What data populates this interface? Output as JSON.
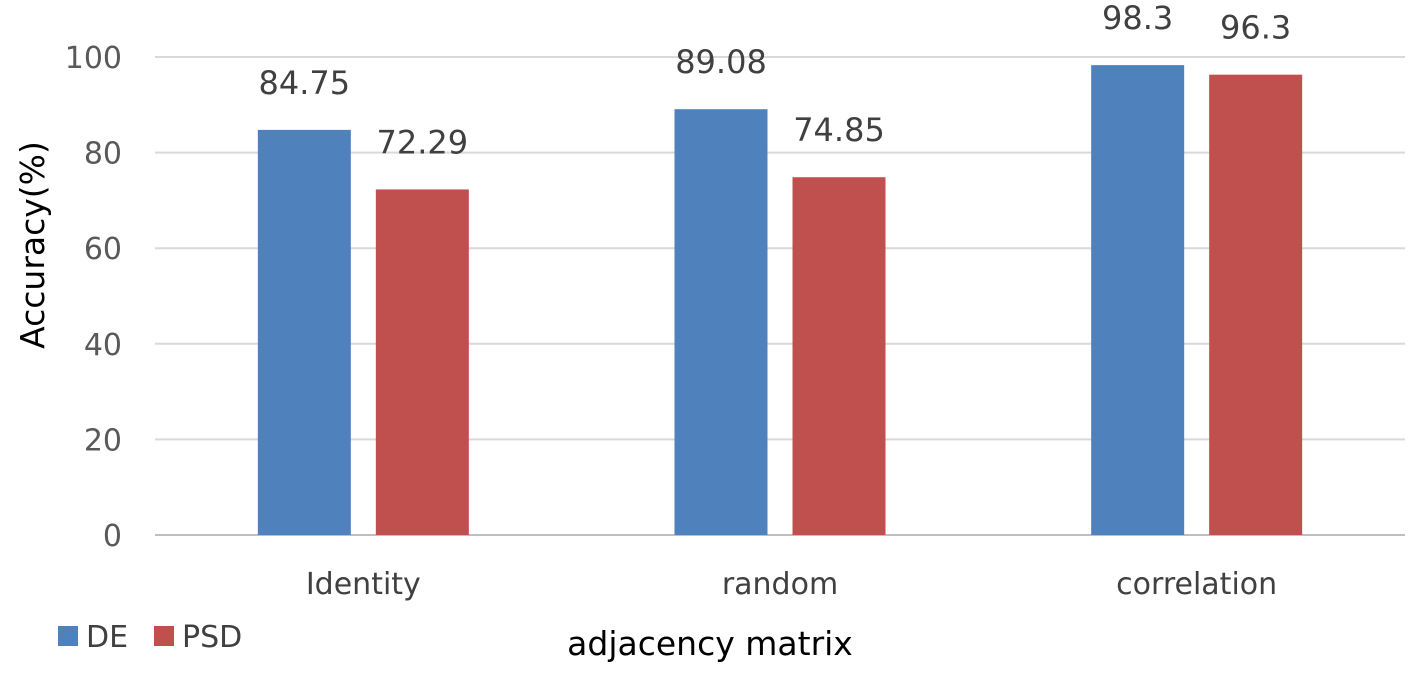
{
  "chart_data": {
    "type": "bar",
    "title": "",
    "xlabel": "adjacency matrix",
    "ylabel": "Accuracy(%)",
    "categories": [
      "Identity",
      "random",
      "correlation"
    ],
    "series": [
      {
        "name": "DE",
        "color": "#4f81bd",
        "values": [
          84.75,
          89.08,
          98.3
        ],
        "labels": [
          "84.75",
          "89.08",
          "98.3"
        ]
      },
      {
        "name": "PSD",
        "color": "#c0504d",
        "values": [
          72.29,
          74.85,
          96.3
        ],
        "labels": [
          "72.29",
          "74.85",
          "96.3"
        ]
      }
    ],
    "ylim": [
      0,
      100
    ],
    "yticks": [
      "0",
      "20",
      "40",
      "60",
      "80",
      "100"
    ],
    "grid": true,
    "legend_position": "bottom-left"
  }
}
